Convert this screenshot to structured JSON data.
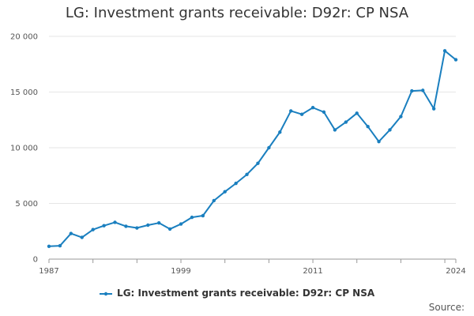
{
  "colors": {
    "series": "#1a7fbf",
    "grid": "#e6e6e6",
    "axis": "#999999"
  },
  "source_label": "Source:",
  "chart_data": {
    "type": "line",
    "title": "LG: Investment grants receivable: D92r: CP NSA",
    "xlabel": "",
    "ylabel": "",
    "xlim": [
      1987,
      2024
    ],
    "ylim": [
      0,
      20000
    ],
    "grid": true,
    "legend_position": "bottom",
    "x_ticks": [
      {
        "value": 1987,
        "label": "1987"
      },
      {
        "value": 1999,
        "label": "1999"
      },
      {
        "value": 2011,
        "label": "2011"
      },
      {
        "value": 2024,
        "label": "2024"
      }
    ],
    "y_ticks": [
      {
        "value": 0,
        "label": "0"
      },
      {
        "value": 5000,
        "label": "5 000"
      },
      {
        "value": 10000,
        "label": "10 000"
      },
      {
        "value": 15000,
        "label": "15 000"
      },
      {
        "value": 20000,
        "label": "20 000"
      }
    ],
    "x": [
      1987,
      1988,
      1989,
      1990,
      1991,
      1992,
      1993,
      1994,
      1995,
      1996,
      1997,
      1998,
      1999,
      2000,
      2001,
      2002,
      2003,
      2004,
      2005,
      2006,
      2007,
      2008,
      2009,
      2010,
      2011,
      2012,
      2013,
      2014,
      2015,
      2016,
      2017,
      2018,
      2019,
      2020,
      2021,
      2022,
      2023,
      2024
    ],
    "series": [
      {
        "name": "LG: Investment grants receivable: D92r: CP NSA",
        "values": [
          1150,
          1200,
          2300,
          1950,
          2650,
          3000,
          3300,
          2950,
          2800,
          3050,
          3250,
          2700,
          3150,
          3750,
          3900,
          5250,
          6050,
          6800,
          7600,
          8600,
          10000,
          11400,
          13300,
          13000,
          13600,
          13200,
          11600,
          12300,
          13100,
          11900,
          10550,
          11600,
          12800,
          15100,
          15150,
          13500,
          18700,
          17900
        ]
      }
    ]
  }
}
